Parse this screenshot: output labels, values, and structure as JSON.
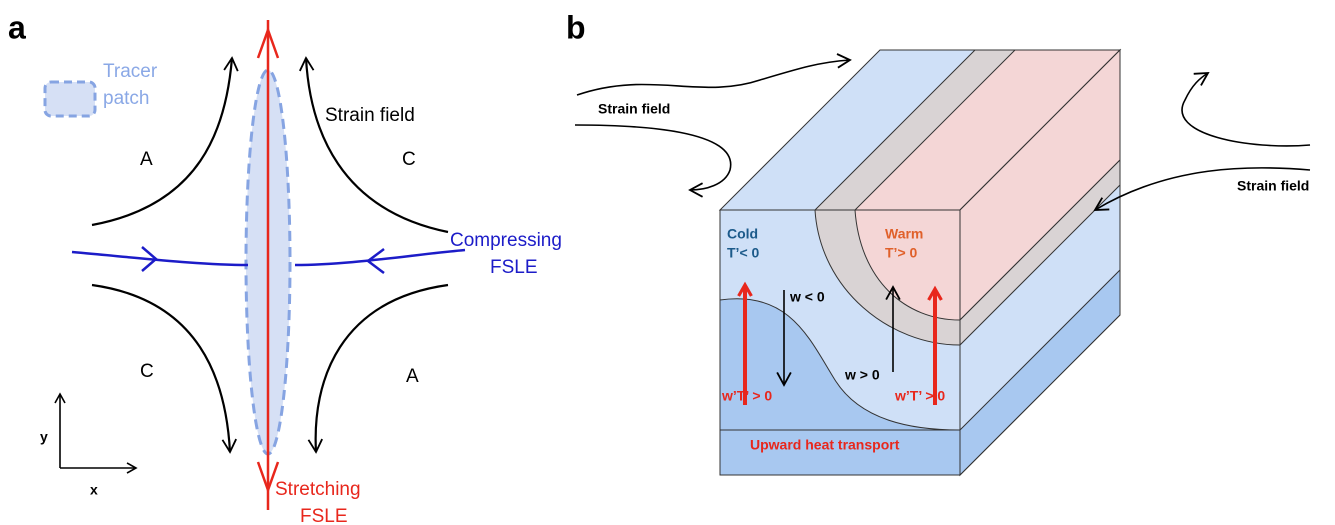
{
  "panel_a": {
    "label": "a",
    "legend": [
      "Tracer",
      "patch"
    ],
    "strain_field": "Strain field",
    "regions": [
      "A",
      "C",
      "C",
      "A"
    ],
    "compressing": [
      "Compressing",
      "FSLE"
    ],
    "stretching": [
      "Stretching",
      "FSLE"
    ],
    "axes": {
      "y": "y",
      "x": "x"
    }
  },
  "panel_b": {
    "label": "b",
    "strain_field": [
      "Strain field",
      "Strain field"
    ],
    "cold": [
      "Cold",
      "T’< 0"
    ],
    "warm": [
      "Warm",
      "T’> 0"
    ],
    "w_neg": "w < 0",
    "w_pos": "w > 0",
    "flux": [
      "w’T’ > 0",
      "w’T’ > 0"
    ],
    "transport": "Upward heat transport"
  }
}
